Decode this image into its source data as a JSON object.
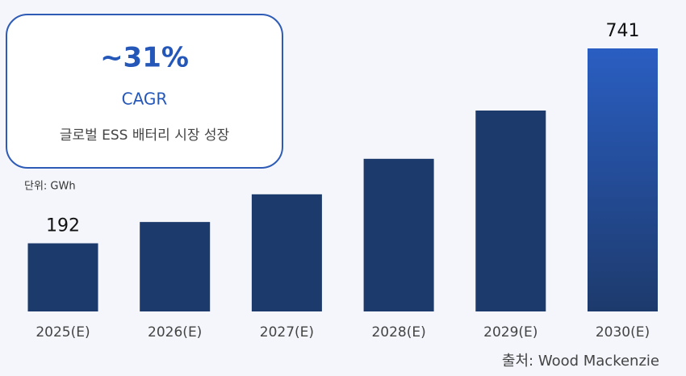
{
  "chart_data": {
    "type": "bar",
    "callout": {
      "headline": "~31%",
      "label": "CAGR",
      "caption": "글로벌 ESS 배터리 시장 성장"
    },
    "unit_label": "단위: GWh",
    "source": "출처: Wood Mackenzie",
    "categories": [
      "2025(E)",
      "2026(E)",
      "2027(E)",
      "2028(E)",
      "2029(E)",
      "2030(E)"
    ],
    "values": [
      192,
      252,
      330,
      430,
      566,
      741
    ],
    "value_labels": [
      "192",
      null,
      null,
      null,
      null,
      "741"
    ],
    "color": "#1d3a6c",
    "highlight_color": "#2a5ec2"
  }
}
